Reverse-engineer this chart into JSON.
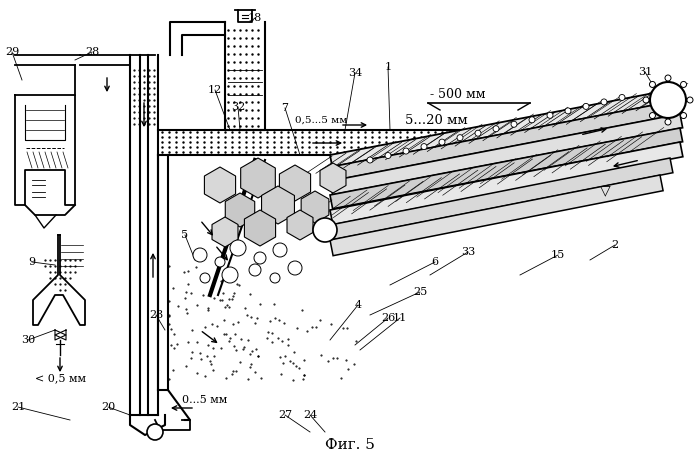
{
  "title": "Фиг. 5",
  "bg_color": "#ffffff",
  "line_color": "#000000",
  "fig_width": 7.0,
  "fig_height": 4.58,
  "dpi": 100
}
